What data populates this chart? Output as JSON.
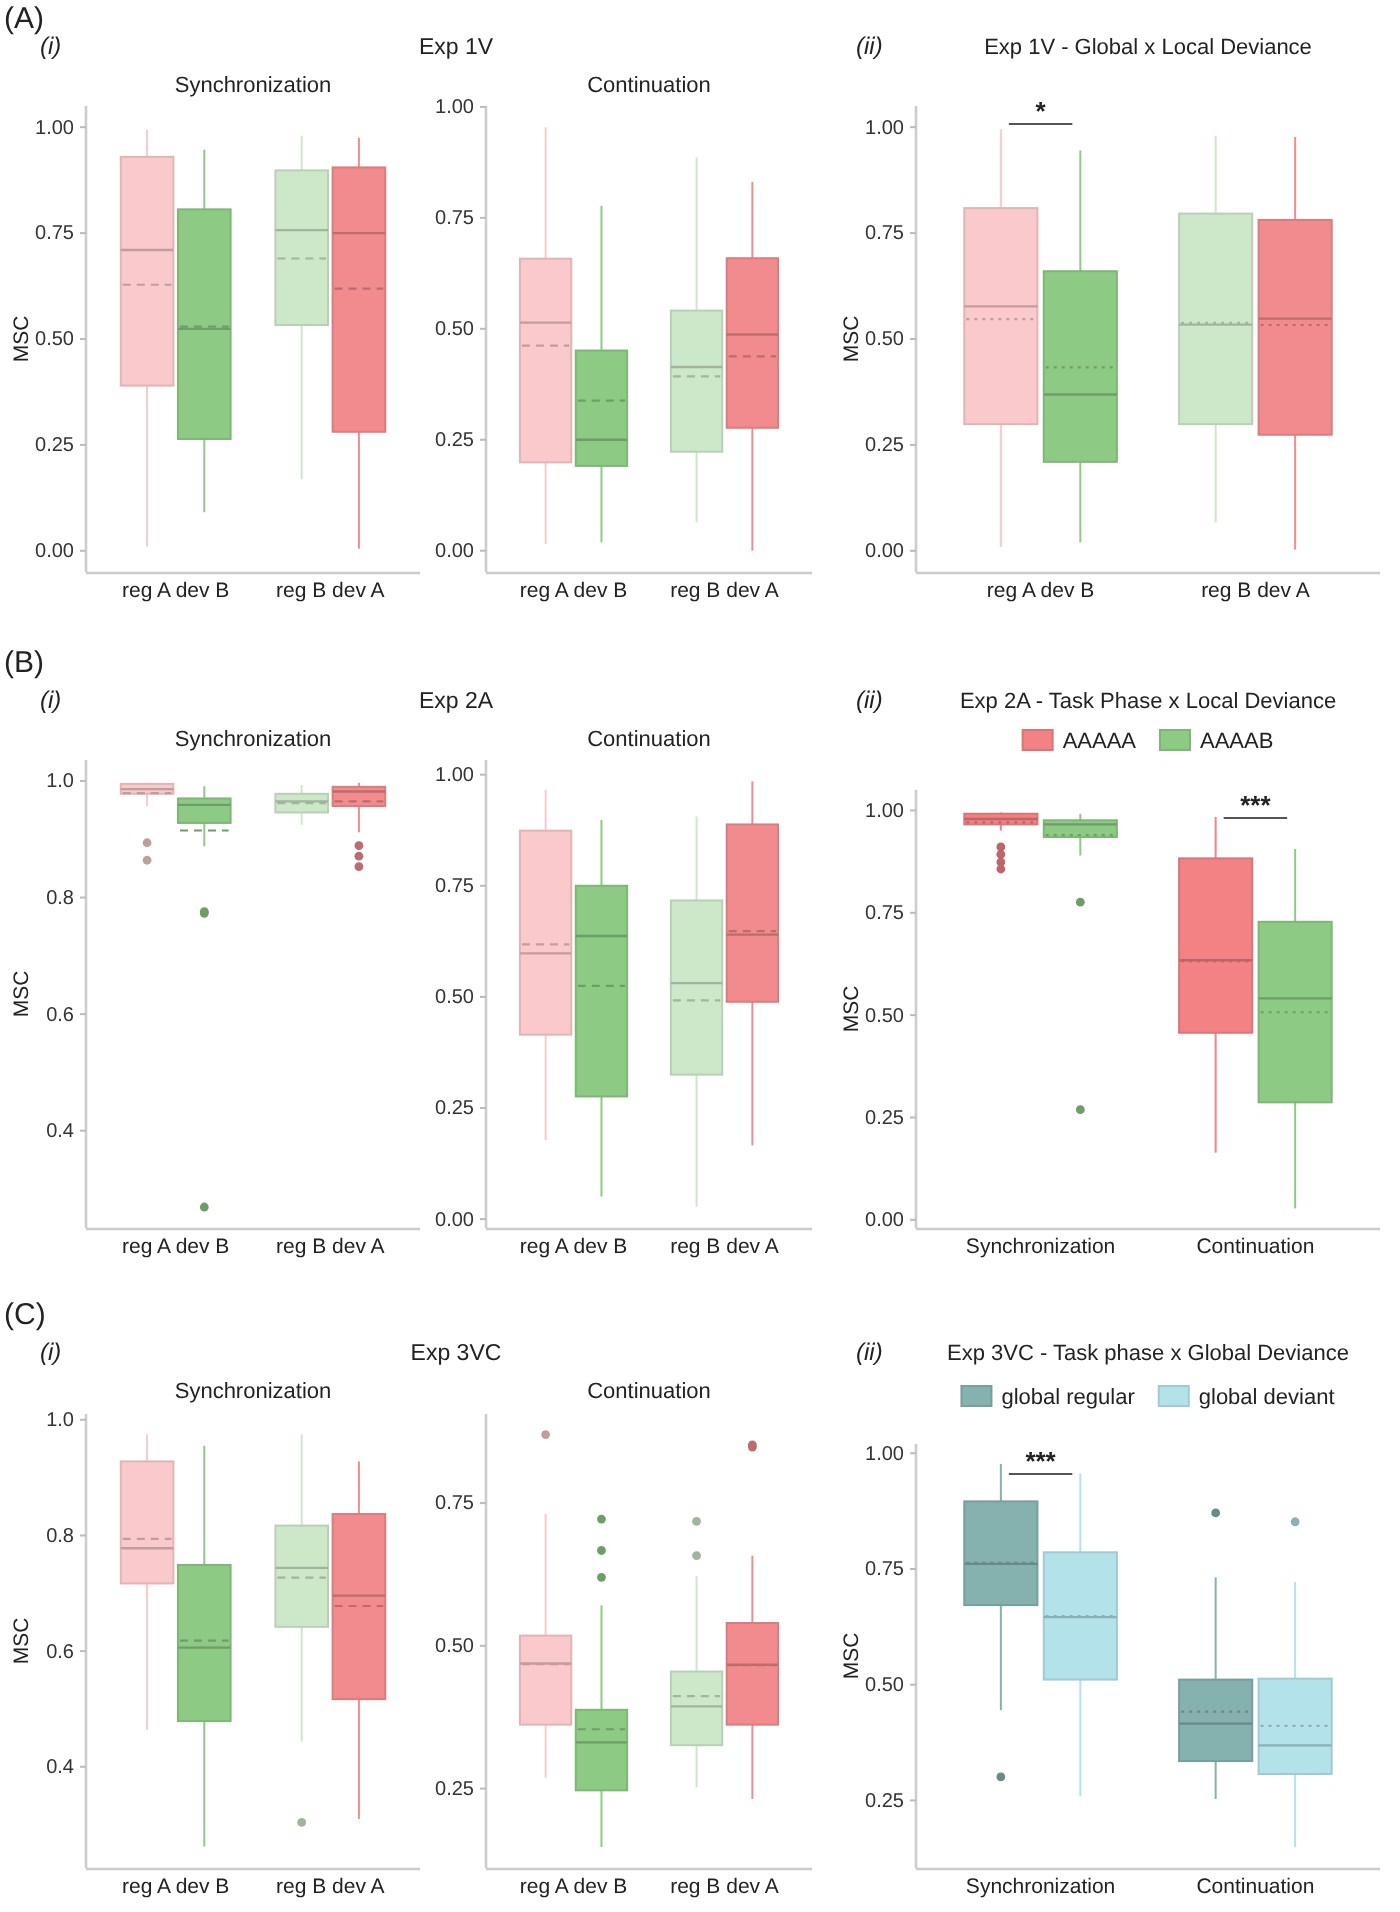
{
  "chart_data": [
    {
      "type": "box",
      "title": "Synchronization",
      "ylabel": "MSC",
      "annotations": [
        "(A)",
        "(i)",
        "Exp 1V"
      ],
      "categories": [
        "reg A dev B",
        "reg B dev A"
      ],
      "ylim": [
        -0.05,
        1.05
      ],
      "yticks": [
        {
          "value": 0,
          "label": "0.00"
        },
        0.25,
        {
          "value": 0.5,
          "label": "0.50"
        },
        0.75,
        {
          "value": 1,
          "label": "1.00"
        }
      ],
      "series": [
        {
          "colors": [
            "#f9c9cb",
            "#cde8c9"
          ],
          "boxes": [
            {
              "low": 0.01,
              "q1": 0.39,
              "median": 0.71,
              "q3": 0.93,
              "high": 0.994,
              "mean": 0.628
            },
            {
              "low": 0.169,
              "q1": 0.533,
              "median": 0.757,
              "q3": 0.898,
              "high": 0.98,
              "mean": 0.69
            }
          ]
        },
        {
          "colors": [
            "#8dcb85",
            "#f28b8d"
          ],
          "boxes": [
            {
              "low": 0.091,
              "q1": 0.264,
              "median": 0.524,
              "q3": 0.806,
              "high": 0.947,
              "mean": 0.529
            },
            {
              "low": 0.005,
              "q1": 0.281,
              "median": 0.75,
              "q3": 0.905,
              "high": 0.975,
              "mean": 0.619
            }
          ]
        }
      ]
    },
    {
      "type": "box",
      "title": "Continuation",
      "categories": [
        "reg A dev B",
        "reg B dev A"
      ],
      "ylim": [
        -0.048,
        1.002
      ],
      "yticks": [
        {
          "value": 0,
          "label": "0.00"
        },
        0.25,
        {
          "value": 0.5,
          "label": "0.50"
        },
        0.75,
        {
          "value": 1,
          "label": "1.00"
        }
      ],
      "series": [
        {
          "colors": [
            "#f9c9cb",
            "#cde8c9"
          ],
          "boxes": [
            {
              "low": 0.015,
              "q1": 0.199,
              "median": 0.514,
              "q3": 0.658,
              "high": 0.954,
              "mean": 0.462
            },
            {
              "low": 0.064,
              "q1": 0.223,
              "median": 0.414,
              "q3": 0.541,
              "high": 0.886,
              "mean": 0.393
            }
          ]
        },
        {
          "colors": [
            "#8dcb85",
            "#f28b8d"
          ],
          "boxes": [
            {
              "low": 0.019,
              "q1": 0.191,
              "median": 0.25,
              "q3": 0.451,
              "high": 0.777,
              "mean": 0.338
            },
            {
              "low": 0.0,
              "q1": 0.277,
              "median": 0.487,
              "q3": 0.659,
              "high": 0.831,
              "mean": 0.438
            }
          ]
        }
      ]
    },
    {
      "type": "box",
      "title": "Exp 1V - Global x Local Deviance",
      "ylabel": "MSC",
      "annotations": [
        "(ii)",
        "*"
      ],
      "categories": [
        "reg A dev B",
        "reg B dev A"
      ],
      "ylim": [
        -0.05,
        1.05
      ],
      "yticks": [
        {
          "value": 0,
          "label": "0.00"
        },
        0.25,
        {
          "value": 0.5,
          "label": "0.50"
        },
        0.75,
        {
          "value": 1,
          "label": "1.00"
        }
      ],
      "series": [
        {
          "colors": [
            "#f9c9cb",
            "#cde8c9"
          ],
          "boxes": [
            {
              "low": 0.009,
              "q1": 0.299,
              "median": 0.577,
              "q3": 0.809,
              "high": 0.995,
              "mean": 0.547
            },
            {
              "low": 0.067,
              "q1": 0.299,
              "median": 0.534,
              "q3": 0.796,
              "high": 0.98,
              "mean": 0.538
            }
          ]
        },
        {
          "colors": [
            "#8dcb85",
            "#f28b8d"
          ],
          "boxes": [
            {
              "low": 0.02,
              "q1": 0.21,
              "median": 0.369,
              "q3": 0.66,
              "high": 0.945,
              "mean": 0.433
            },
            {
              "low": 0.003,
              "q1": 0.274,
              "median": 0.548,
              "q3": 0.781,
              "high": 0.977,
              "mean": 0.533
            }
          ]
        }
      ]
    },
    {
      "type": "box",
      "title": "Synchronization",
      "ylabel": "MSC",
      "annotations": [
        "(B)",
        "(i)",
        "Exp 2A"
      ],
      "categories": [
        "reg A dev B",
        "reg B dev A"
      ],
      "ylim": [
        0.233,
        1.036
      ],
      "yticks": [
        0.4,
        0.6,
        0.8,
        {
          "value": 1,
          "label": "1.0"
        }
      ],
      "series": [
        {
          "colors": [
            "#f9c9cb",
            "#cde8c9"
          ],
          "boxes": [
            {
              "low": 0.957,
              "q1": 0.978,
              "median": 0.986,
              "q3": 0.995,
              "high": 0.997,
              "mean": 0.979,
              "outliers": [
                0.894,
                0.864
              ]
            },
            {
              "low": 0.925,
              "q1": 0.946,
              "median": 0.965,
              "q3": 0.978,
              "high": 0.993,
              "mean": 0.962
            }
          ]
        },
        {
          "colors": [
            "#8dcb85",
            "#f28b8d"
          ],
          "boxes": [
            {
              "low": 0.888,
              "q1": 0.928,
              "median": 0.959,
              "q3": 0.97,
              "high": 0.991,
              "mean": 0.915,
              "outliers": [
                0.776,
                0.773,
                0.269
              ]
            },
            {
              "low": 0.912,
              "q1": 0.957,
              "median": 0.982,
              "q3": 0.99,
              "high": 0.997,
              "mean": 0.965,
              "outliers": [
                0.889,
                0.871,
                0.853
              ]
            }
          ]
        }
      ]
    },
    {
      "type": "box",
      "title": "Continuation",
      "categories": [
        "reg A dev B",
        "reg B dev A"
      ],
      "ylim": [
        -0.02,
        1.033
      ],
      "yticks": [
        {
          "value": 0,
          "label": "0.00"
        },
        0.25,
        {
          "value": 0.5,
          "label": "0.50"
        },
        0.75,
        {
          "value": 1,
          "label": "1.00"
        }
      ],
      "series": [
        {
          "colors": [
            "#f9c9cb",
            "#cde8c9"
          ],
          "boxes": [
            {
              "low": 0.178,
              "q1": 0.415,
              "median": 0.598,
              "q3": 0.874,
              "high": 0.966,
              "mean": 0.618
            },
            {
              "low": 0.028,
              "q1": 0.325,
              "median": 0.531,
              "q3": 0.717,
              "high": 0.906,
              "mean": 0.492
            }
          ]
        },
        {
          "colors": [
            "#8dcb85",
            "#f28b8d"
          ],
          "boxes": [
            {
              "low": 0.051,
              "q1": 0.276,
              "median": 0.637,
              "q3": 0.75,
              "high": 0.898,
              "mean": 0.525
            },
            {
              "low": 0.166,
              "q1": 0.489,
              "median": 0.64,
              "q3": 0.888,
              "high": 0.985,
              "mean": 0.648
            }
          ]
        }
      ]
    },
    {
      "type": "box",
      "title": "Exp 2A - Task Phase x Local Deviance",
      "ylabel": "MSC",
      "legend": "top",
      "annotations": [
        "(ii)",
        "***"
      ],
      "categories": [
        "Synchronization",
        "Continuation"
      ],
      "ylim": [
        -0.02,
        1.05
      ],
      "yticks": [
        {
          "value": 0,
          "label": "0.00"
        },
        0.25,
        {
          "value": 0.5,
          "label": "0.50"
        },
        0.75,
        {
          "value": 1,
          "label": "1.00"
        }
      ],
      "series": [
        {
          "name": "AAAAA",
          "color": "#f38284",
          "boxes": [
            {
              "low": 0.951,
              "q1": 0.966,
              "median": 0.979,
              "q3": 0.992,
              "high": 0.995,
              "mean": 0.971,
              "outliers": [
                0.911,
                0.893,
                0.874,
                0.857
              ]
            },
            {
              "low": 0.164,
              "q1": 0.457,
              "median": 0.634,
              "q3": 0.883,
              "high": 0.984,
              "mean": 0.632
            }
          ]
        },
        {
          "name": "AAAAB",
          "color": "#8dcb85",
          "boxes": [
            {
              "low": 0.89,
              "q1": 0.935,
              "median": 0.966,
              "q3": 0.976,
              "high": 0.992,
              "mean": 0.94,
              "outliers": [
                0.776,
                0.269
              ]
            },
            {
              "low": 0.028,
              "q1": 0.287,
              "median": 0.541,
              "q3": 0.728,
              "high": 0.906,
              "mean": 0.507
            }
          ]
        }
      ]
    },
    {
      "type": "box",
      "title": "Synchronization",
      "ylabel": "MSC",
      "annotations": [
        "(C)",
        "(i)",
        "Exp 3VC"
      ],
      "categories": [
        "reg A dev B",
        "reg B dev A"
      ],
      "ylim": [
        0.225,
        1.01
      ],
      "yticks": [
        0.4,
        0.6,
        0.8,
        {
          "value": 1,
          "label": "1.0"
        }
      ],
      "series": [
        {
          "colors": [
            "#f9c9cb",
            "#cde8c9"
          ],
          "boxes": [
            {
              "low": 0.464,
              "q1": 0.717,
              "median": 0.778,
              "q3": 0.928,
              "high": 0.975,
              "mean": 0.794
            },
            {
              "low": 0.444,
              "q1": 0.642,
              "median": 0.744,
              "q3": 0.817,
              "high": 0.975,
              "mean": 0.727,
              "outliers": [
                0.304
              ]
            }
          ]
        },
        {
          "colors": [
            "#8dcb85",
            "#f28b8d"
          ],
          "boxes": [
            {
              "low": 0.262,
              "q1": 0.479,
              "median": 0.606,
              "q3": 0.749,
              "high": 0.955,
              "mean": 0.618
            },
            {
              "low": 0.31,
              "q1": 0.517,
              "median": 0.696,
              "q3": 0.837,
              "high": 0.928,
              "mean": 0.678
            }
          ]
        }
      ]
    },
    {
      "type": "box",
      "title": "Continuation",
      "categories": [
        "reg A dev B",
        "reg B dev A"
      ],
      "ylim": [
        0.111,
        0.906
      ],
      "yticks": [
        0.25,
        {
          "value": 0.5,
          "label": "0.50"
        },
        0.75
      ],
      "series": [
        {
          "colors": [
            "#f9c9cb",
            "#cde8c9"
          ],
          "boxes": [
            {
              "low": 0.269,
              "q1": 0.362,
              "median": 0.469,
              "q3": 0.518,
              "high": 0.731,
              "mean": 0.468,
              "outliers": [
                0.87
              ]
            },
            {
              "low": 0.252,
              "q1": 0.326,
              "median": 0.394,
              "q3": 0.455,
              "high": 0.622,
              "mean": 0.412,
              "outliers": [
                0.718,
                0.658
              ]
            }
          ]
        },
        {
          "colors": [
            "#8dcb85",
            "#f28b8d"
          ],
          "boxes": [
            {
              "low": 0.148,
              "q1": 0.247,
              "median": 0.331,
              "q3": 0.388,
              "high": 0.571,
              "mean": 0.354,
              "outliers": [
                0.722,
                0.667,
                0.62
              ]
            },
            {
              "low": 0.232,
              "q1": 0.362,
              "median": 0.467,
              "q3": 0.54,
              "high": 0.658,
              "mean": 0.466,
              "outliers": [
                0.852,
                0.848
              ]
            }
          ]
        }
      ]
    },
    {
      "type": "box",
      "title": "Exp 3VC - Task phase x Global Deviance",
      "ylabel": "MSC",
      "legend": "top",
      "annotations": [
        "(ii)",
        "***"
      ],
      "categories": [
        "Synchronization",
        "Continuation"
      ],
      "ylim": [
        0.104,
        1.02
      ],
      "yticks": [
        0.25,
        {
          "value": 0.5,
          "label": "0.50"
        },
        0.75,
        {
          "value": 1,
          "label": "1.00"
        }
      ],
      "series": [
        {
          "name": "global regular",
          "color": "#85b1ae",
          "boxes": [
            {
              "low": 0.445,
              "q1": 0.672,
              "median": 0.761,
              "q3": 0.896,
              "high": 0.977,
              "mean": 0.763,
              "outliers": [
                0.301
              ]
            },
            {
              "low": 0.253,
              "q1": 0.335,
              "median": 0.416,
              "q3": 0.511,
              "high": 0.732,
              "mean": 0.442,
              "outliers": [
                0.871
              ]
            }
          ]
        },
        {
          "name": "global deviant",
          "color": "#b3e2ea",
          "boxes": [
            {
              "low": 0.259,
              "q1": 0.511,
              "median": 0.646,
              "q3": 0.786,
              "high": 0.956,
              "mean": 0.648
            },
            {
              "low": 0.149,
              "q1": 0.307,
              "median": 0.369,
              "q3": 0.513,
              "high": 0.722,
              "mean": 0.411,
              "outliers": [
                0.852
              ]
            }
          ]
        }
      ]
    }
  ]
}
